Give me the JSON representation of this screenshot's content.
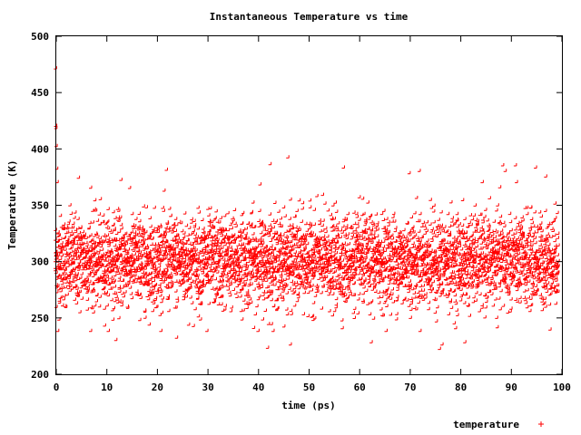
{
  "chart_data": {
    "type": "scatter",
    "title": "Instantaneous Temperature vs time",
    "xlabel": "time (ps)",
    "ylabel": "Temperature (K)",
    "xlim": [
      0,
      100
    ],
    "ylim": [
      200,
      500
    ],
    "x_ticks": [
      "0",
      "10",
      "20",
      "30",
      "40",
      "50",
      "60",
      "70",
      "80",
      "90",
      "100"
    ],
    "y_ticks": [
      "200",
      "250",
      "300",
      "350",
      "400",
      "450",
      "500"
    ],
    "grid": false,
    "legend_position": "bottom-right",
    "series": [
      {
        "name": "temperature",
        "marker": "+",
        "color": "#ff0000",
        "sample_points": [
          [
            0.0,
            300
          ],
          [
            0.05,
            471
          ],
          [
            0.1,
            420
          ],
          [
            0.15,
            418
          ],
          [
            0.2,
            402
          ],
          [
            0.3,
            382
          ],
          [
            0.4,
            370
          ],
          [
            0.5,
            238
          ],
          [
            1.0,
            285
          ],
          [
            2.0,
            310
          ],
          [
            4.6,
            374
          ],
          [
            7.0,
            365
          ],
          [
            12.0,
            230
          ],
          [
            13.0,
            372
          ],
          [
            22.0,
            381
          ],
          [
            24.0,
            232
          ],
          [
            30.0,
            238
          ],
          [
            40.5,
            368
          ],
          [
            42.0,
            223
          ],
          [
            42.5,
            386
          ],
          [
            46.0,
            392
          ],
          [
            46.5,
            226
          ],
          [
            57.0,
            383
          ],
          [
            62.5,
            228
          ],
          [
            70.0,
            378
          ],
          [
            72.0,
            380
          ],
          [
            76.0,
            222
          ],
          [
            76.5,
            226
          ],
          [
            81.0,
            228
          ],
          [
            88.5,
            385
          ],
          [
            89.0,
            380
          ],
          [
            91.0,
            385
          ],
          [
            95.0,
            383
          ],
          [
            97.0,
            375
          ],
          [
            99.5,
            300
          ]
        ],
        "band": {
          "mean": 300,
          "core_spread": 36,
          "x_step": 0.02
        }
      }
    ]
  }
}
